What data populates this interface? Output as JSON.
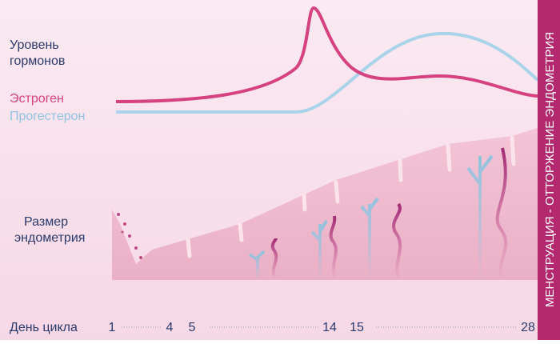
{
  "labels": {
    "hormones": [
      "Уровень",
      "гормонов"
    ],
    "estrogen": "Эстроген",
    "progesterone": "Прогестерон",
    "endometrium": [
      "Размер",
      "эндометрия"
    ],
    "cycle_day": "День цикла"
  },
  "days": [
    "1",
    "4",
    "5",
    "14",
    "15",
    "28"
  ],
  "side_banner": "МЕНСТРУАЦИЯ - ОТТОРЖЕНИЕ ЭНДОМЕТРИЯ"
}
